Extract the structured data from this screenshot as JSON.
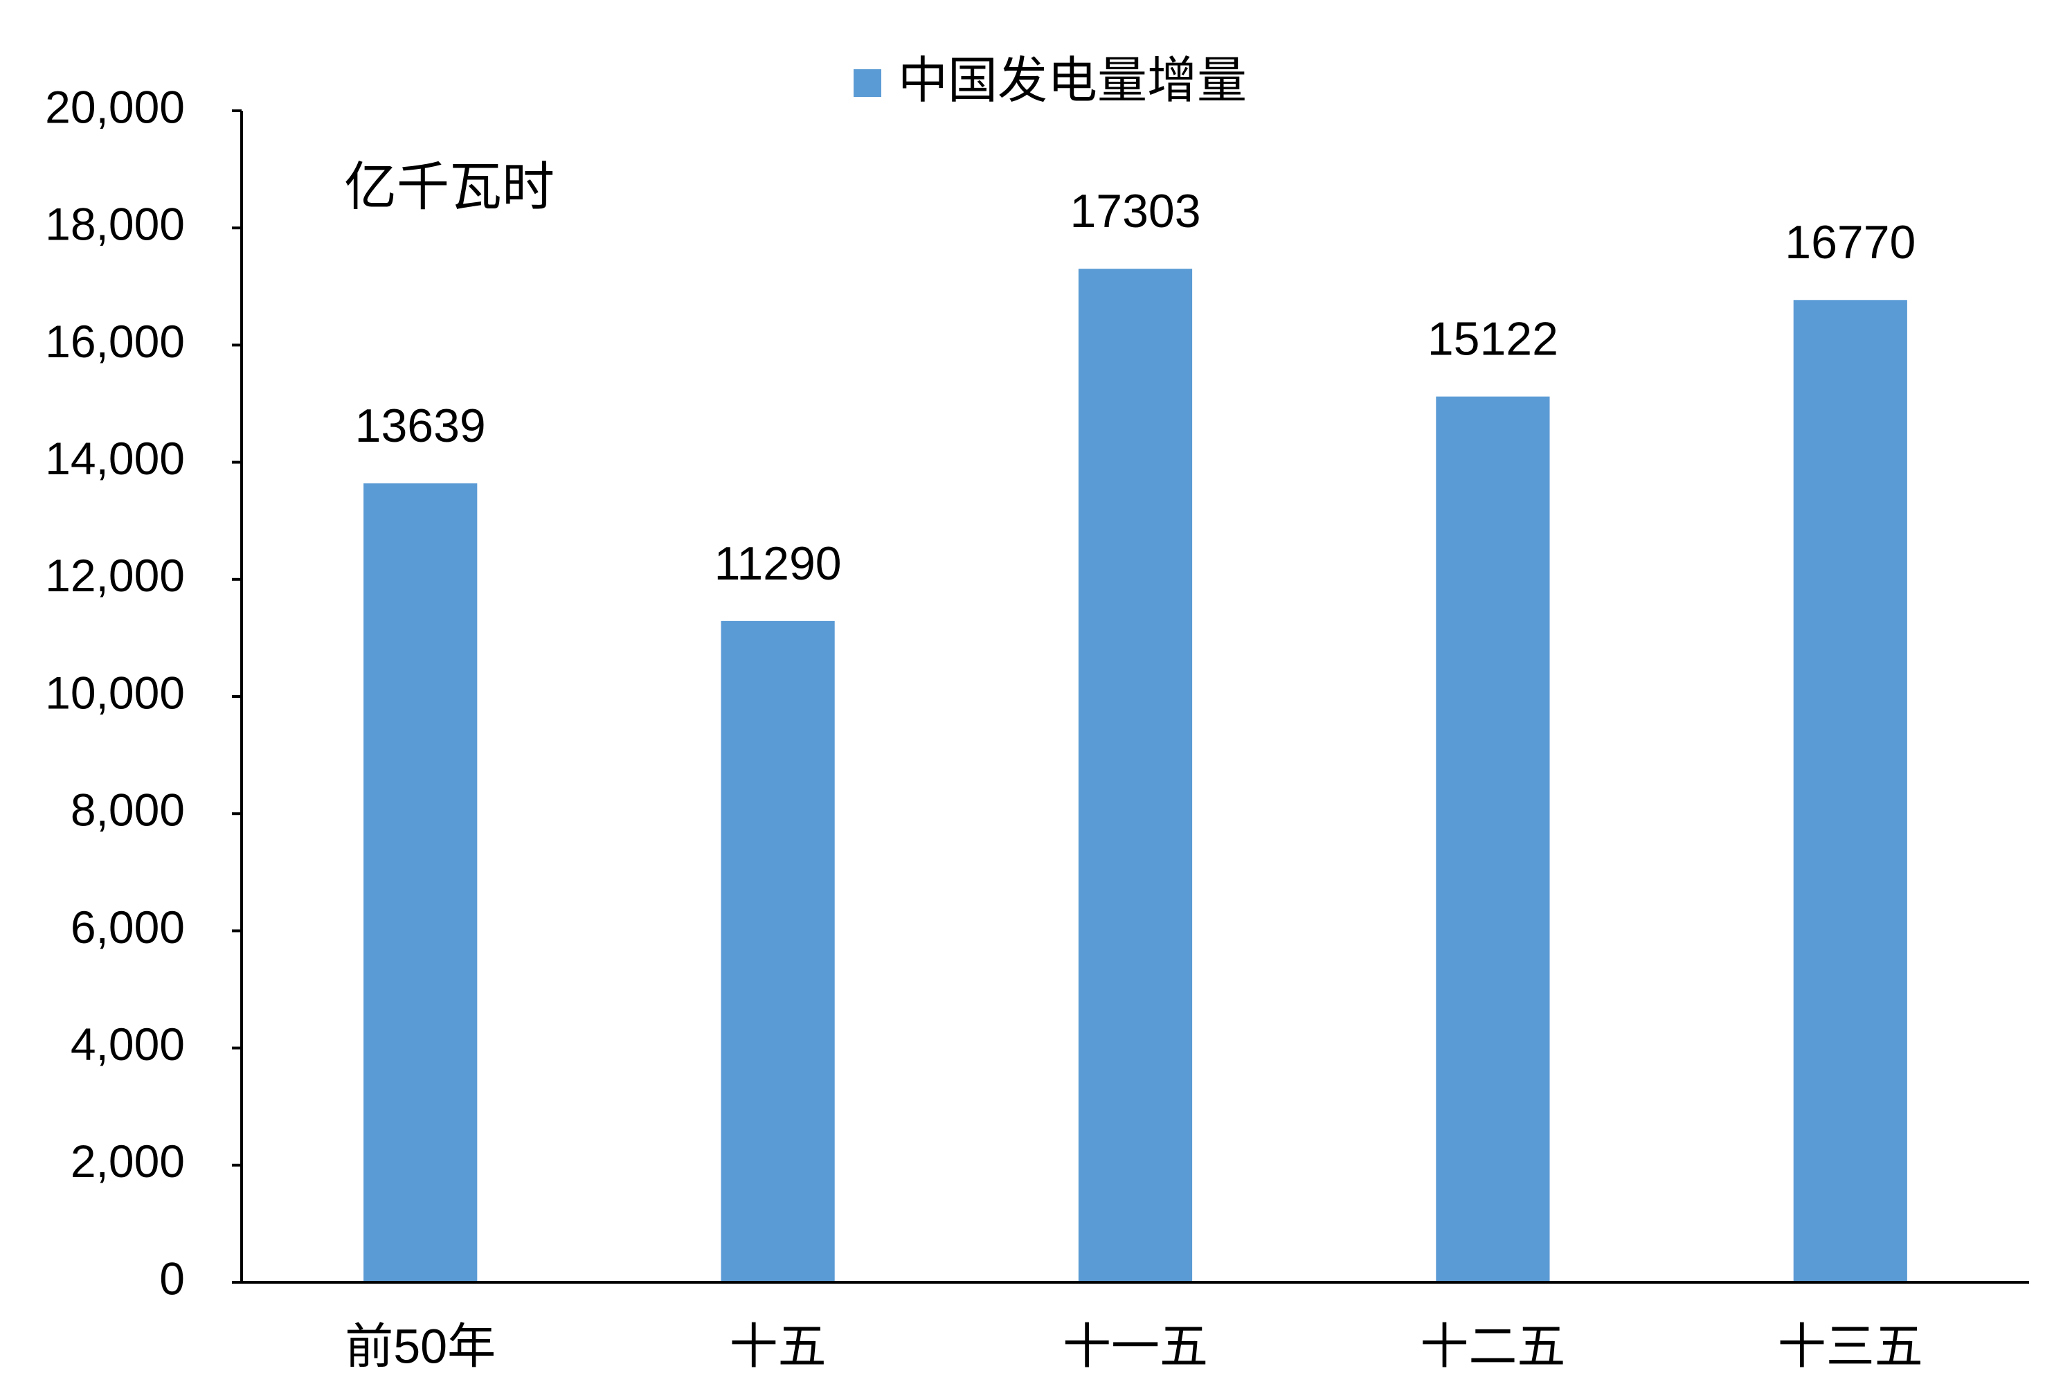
{
  "chart_data": {
    "type": "bar",
    "y_label": "亿千瓦时",
    "categories": [
      "前50年",
      "十五",
      "十一五",
      "十二五",
      "十三五"
    ],
    "series": [
      {
        "name": "中国发电量增量",
        "color": "#5b9bd5",
        "values": [
          13639,
          11290,
          17303,
          15122,
          16770
        ]
      }
    ],
    "ylim": [
      0,
      20000
    ],
    "yticks": [
      0,
      {
        "value": 2000,
        "label": "2,000"
      },
      {
        "value": 4000,
        "label": "4,000"
      },
      {
        "value": 6000,
        "label": "6,000"
      },
      {
        "value": 8000,
        "label": "8,000"
      },
      {
        "value": 10000,
        "label": "10,000"
      },
      {
        "value": 12000,
        "label": "12,000"
      },
      {
        "value": 14000,
        "label": "14,000"
      },
      {
        "value": 16000,
        "label": "16,000"
      },
      {
        "value": 18000,
        "label": "18,000"
      },
      {
        "value": 20000,
        "label": "20,000"
      }
    ],
    "grid": false,
    "legend": "top"
  }
}
